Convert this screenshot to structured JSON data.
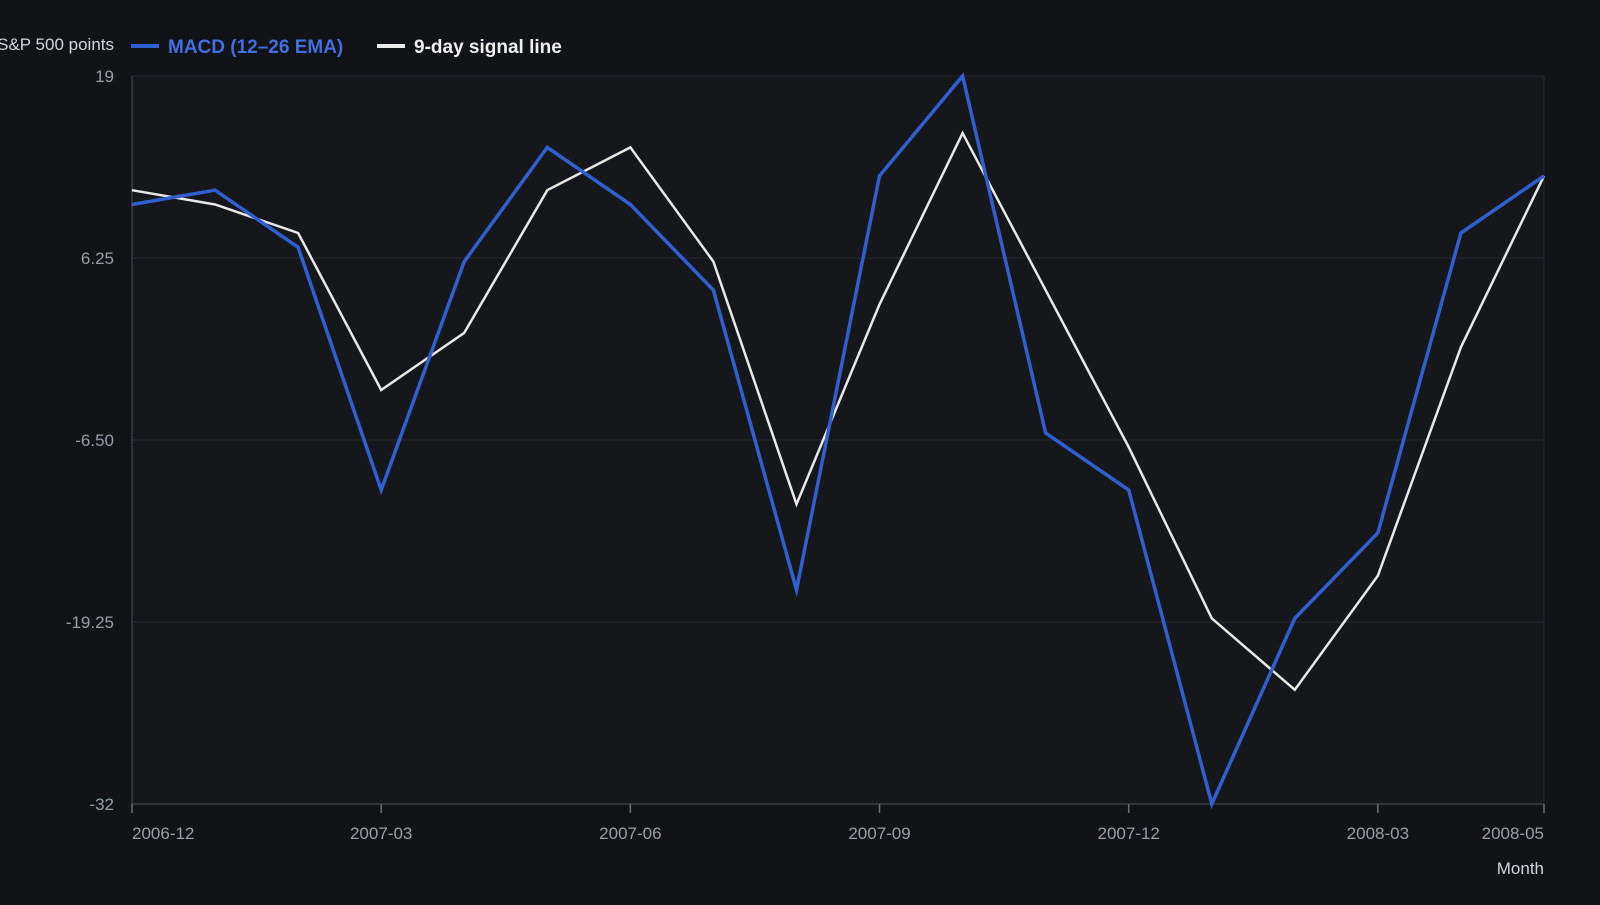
{
  "chart_data": {
    "type": "line",
    "ylabel": "S&P 500 points",
    "xlabel": "Month",
    "ylim": [
      -32,
      19
    ],
    "yticks": [
      19,
      6.25,
      -6.5,
      -19.25,
      -32
    ],
    "ytick_labels": [
      "19",
      "6.25",
      "-6.50",
      "-19.25",
      "-32"
    ],
    "xticks": [
      {
        "label": "2006-12",
        "index": 0
      },
      {
        "label": "2007-03",
        "index": 3
      },
      {
        "label": "2007-06",
        "index": 6
      },
      {
        "label": "2007-09",
        "index": 9
      },
      {
        "label": "2007-12",
        "index": 12
      },
      {
        "label": "2008-03",
        "index": 15
      },
      {
        "label": "2008-05",
        "index": 17
      }
    ],
    "x": [
      "2006-12",
      "2007-01",
      "2007-02",
      "2007-03",
      "2007-04",
      "2007-05",
      "2007-06",
      "2007-07",
      "2007-08",
      "2007-09",
      "2007-10",
      "2007-11",
      "2007-12",
      "2008-01",
      "2008-02",
      "2008-03",
      "2008-04",
      "2008-05"
    ],
    "grid": true,
    "legend_position": "top-left",
    "series": [
      {
        "name": "MACD (12–26 EMA)",
        "color": "#2f5fd0",
        "values": [
          10.0,
          11.0,
          7.0,
          -10.0,
          6.0,
          14.0,
          10.0,
          4.0,
          -17.0,
          12.0,
          19.0,
          -6.0,
          -10.0,
          -32.0,
          -19.0,
          -13.0,
          8.0,
          12.0
        ]
      },
      {
        "name": "9-day signal line",
        "color": "#e8e8e8",
        "values": [
          11.0,
          10.0,
          8.0,
          -3.0,
          1.0,
          11.0,
          14.0,
          6.0,
          -11.0,
          3.0,
          15.0,
          4.0,
          -7.0,
          -19.0,
          -24.0,
          -16.0,
          0.0,
          12.0
        ]
      }
    ]
  }
}
